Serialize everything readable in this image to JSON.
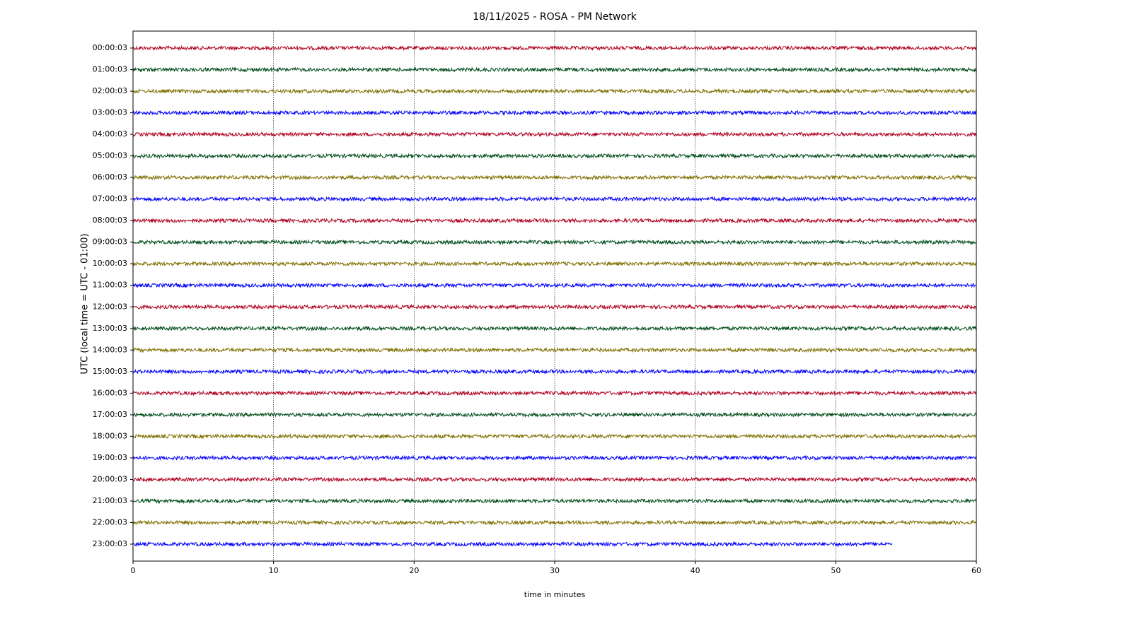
{
  "chart_data": {
    "type": "helicorder",
    "title": "18/11/2025 - ROSA - PM Network",
    "xlabel": "time in minutes",
    "ylabel": "UTC (local time = UTC - 01:00)",
    "categories": [
      "00:00:03",
      "01:00:03",
      "02:00:03",
      "03:00:03",
      "04:00:03",
      "05:00:03",
      "06:00:03",
      "07:00:03",
      "08:00:03",
      "09:00:03",
      "10:00:03",
      "11:00:03",
      "12:00:03",
      "13:00:03",
      "14:00:03",
      "15:00:03",
      "16:00:03",
      "17:00:03",
      "18:00:03",
      "19:00:03",
      "20:00:03",
      "21:00:03",
      "22:00:03",
      "23:00:03"
    ],
    "values": [
      60,
      60,
      60,
      60,
      60,
      60,
      60,
      60,
      60,
      60,
      60,
      60,
      60,
      60,
      60,
      60,
      60,
      60,
      60,
      60,
      60,
      60,
      60,
      54
    ],
    "colors": [
      "#b00020",
      "#004d1a",
      "#7f6f00",
      "#0000ff"
    ],
    "xlim": [
      0,
      60
    ],
    "xticks": [
      0,
      10,
      20,
      30,
      40,
      50,
      60
    ],
    "grid": true
  }
}
